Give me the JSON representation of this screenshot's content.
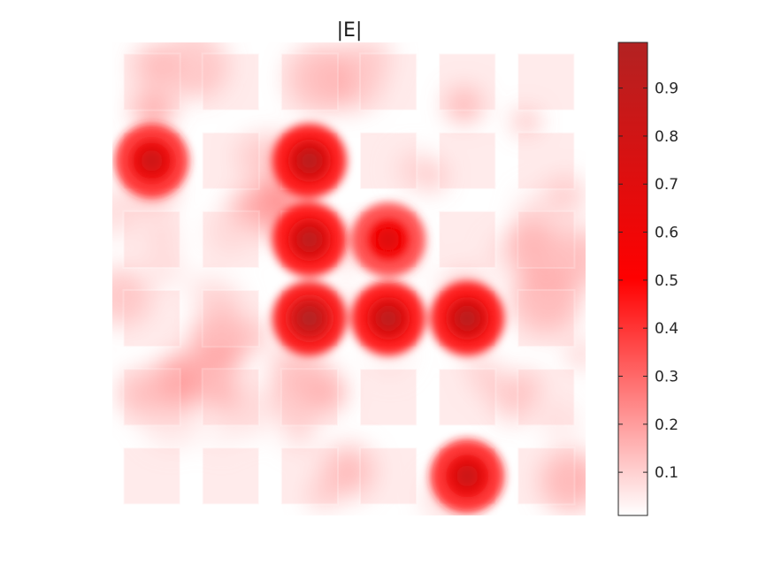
{
  "chart_data": {
    "type": "heatmap",
    "title": "|E|",
    "xlabel": "",
    "ylabel": "",
    "colorbar": {
      "min": 0.01,
      "max": 0.995,
      "ticks": [
        0.1,
        0.2,
        0.3,
        0.4,
        0.5,
        0.6,
        0.7,
        0.8,
        0.9
      ],
      "tick_labels": [
        "0.1",
        "0.2",
        "0.3",
        "0.4",
        "0.5",
        "0.6",
        "0.7",
        "0.8",
        "0.9"
      ],
      "colors": [
        "#ffffff",
        "#ff0000",
        "#b22222"
      ],
      "position": "right"
    },
    "grid": false,
    "lattice": {
      "rows": 6,
      "cols": 6
    },
    "hotspots": [
      {
        "row": 1,
        "col": 0,
        "value": 0.8
      },
      {
        "row": 1,
        "col": 2,
        "value": 0.92
      },
      {
        "row": 2,
        "col": 2,
        "value": 0.9
      },
      {
        "row": 2,
        "col": 3,
        "value": 0.7
      },
      {
        "row": 3,
        "col": 2,
        "value": 0.96
      },
      {
        "row": 3,
        "col": 3,
        "value": 0.9
      },
      {
        "row": 3,
        "col": 4,
        "value": 0.92
      },
      {
        "row": 5,
        "col": 4,
        "value": 0.82
      }
    ]
  }
}
